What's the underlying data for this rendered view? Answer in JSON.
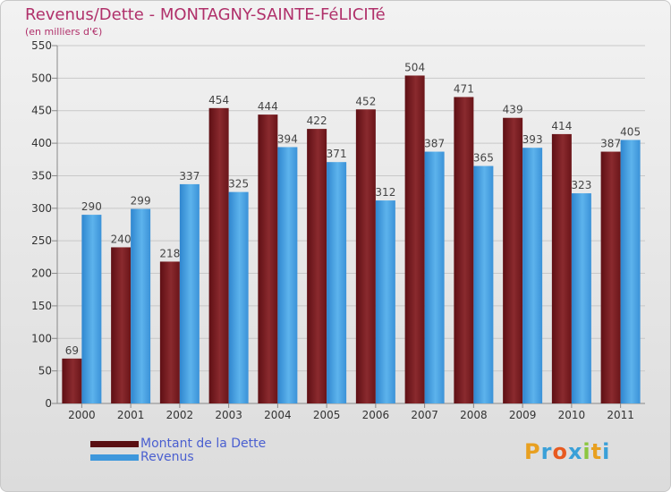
{
  "title": "Revenus/Dette - MONTAGNY-SAINTE-FéLICITé",
  "subtitle": "(en milliers d'€)",
  "logo_text": "Proxiti",
  "colors": {
    "debt": "#7b1a1f",
    "revenue": "#4aa3e2",
    "title": "#b0306a",
    "legend_text": "#4a5fd0"
  },
  "chart_data": {
    "type": "bar",
    "categories": [
      "2000",
      "2001",
      "2002",
      "2003",
      "2004",
      "2005",
      "2006",
      "2007",
      "2008",
      "2009",
      "2010",
      "2011"
    ],
    "series": [
      {
        "name": "Montant de la Dette",
        "values": [
          69,
          240,
          218,
          454,
          444,
          422,
          452,
          504,
          471,
          439,
          414,
          387
        ]
      },
      {
        "name": "Revenus",
        "values": [
          290,
          299,
          337,
          325,
          394,
          371,
          312,
          387,
          365,
          393,
          323,
          405
        ]
      }
    ],
    "ylim": [
      0,
      550
    ],
    "yticks": [
      0,
      50,
      100,
      150,
      200,
      250,
      300,
      350,
      400,
      450,
      500,
      550
    ],
    "grid": true,
    "legend_placement": "bottom-left"
  }
}
